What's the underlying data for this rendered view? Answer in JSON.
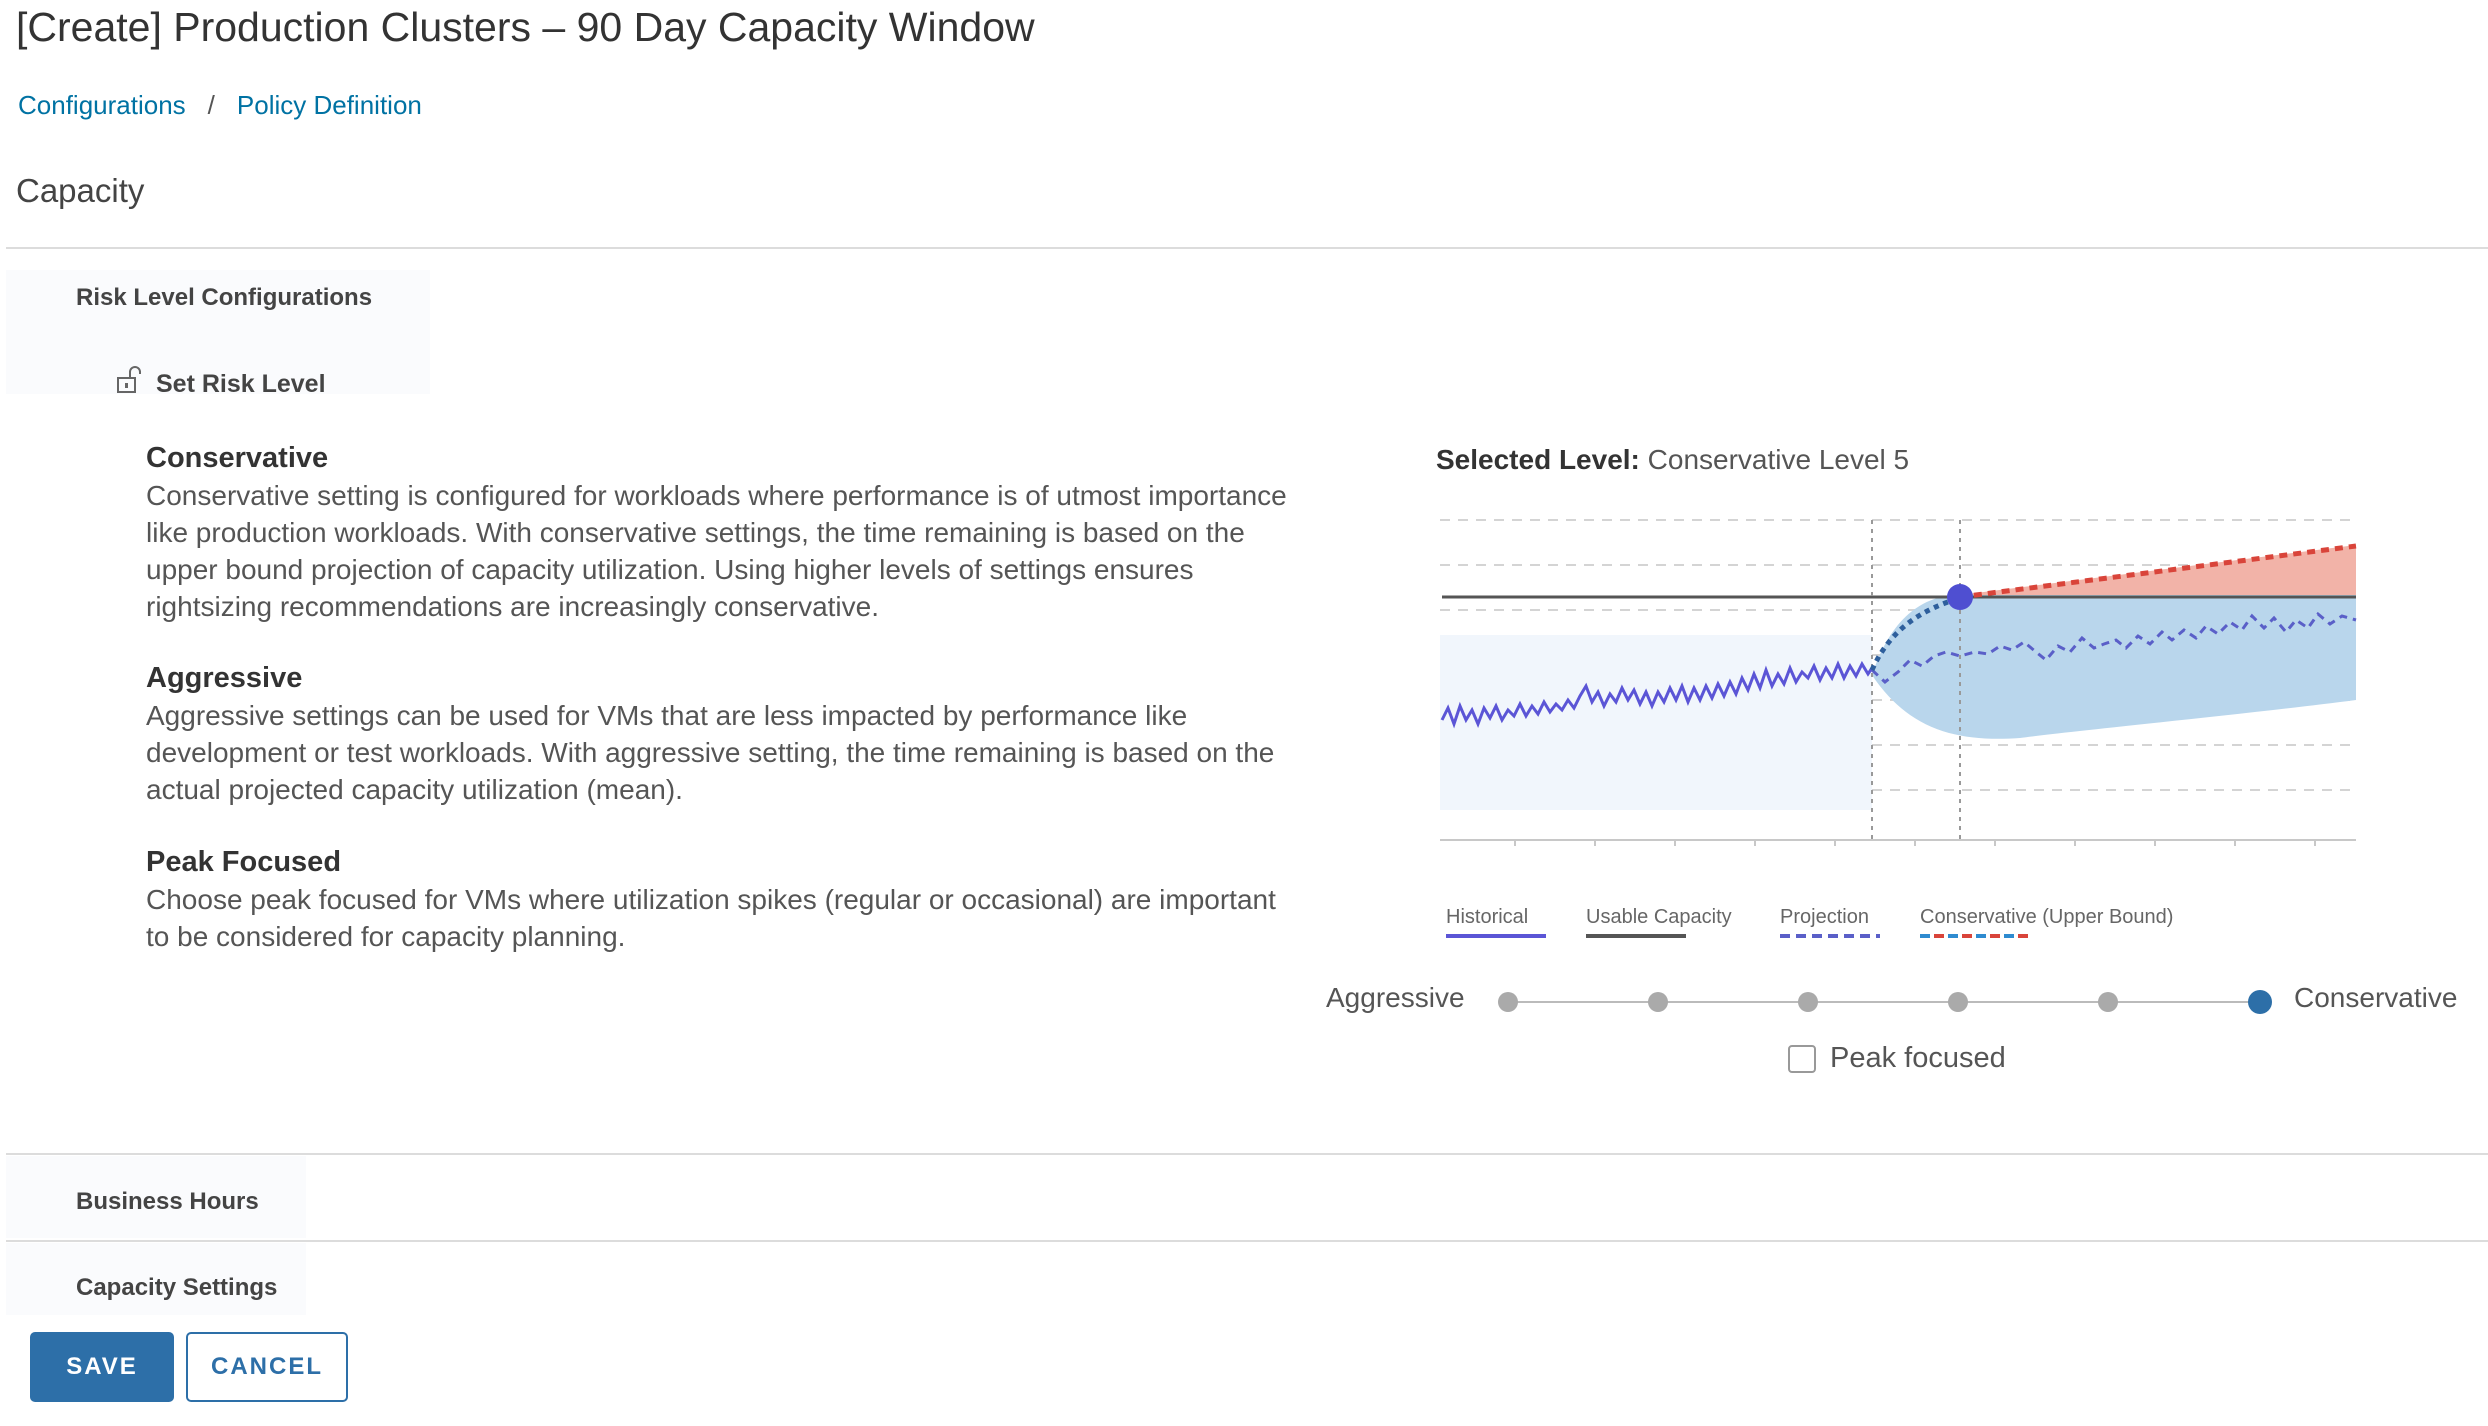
{
  "page": {
    "title": "[Create] Production Clusters – 90 Day Capacity Window",
    "breadcrumb": [
      "Configurations",
      "Policy Definition"
    ],
    "section": "Capacity"
  },
  "risk": {
    "accordion_title": "Risk Level Configurations",
    "set_label": "Set Risk Level",
    "icon": "unlock-icon",
    "descriptions": [
      {
        "title": "Conservative",
        "text": "Conservative setting is configured for workloads where performance is of utmost importance like production workloads. With conservative settings, the time remaining is based on the upper bound projection of capacity utilization. Using higher levels of settings ensures rightsizing recommendations are increasingly conservative."
      },
      {
        "title": "Aggressive",
        "text": "Aggressive settings can be used for VMs that are less impacted by performance like development or test workloads. With aggressive setting, the time remaining is based on the actual projected capacity utilization (mean)."
      },
      {
        "title": "Peak Focused",
        "text": "Choose peak focused for VMs where utilization spikes (regular or occasional) are important to be considered for capacity planning."
      }
    ],
    "selected_prefix": "Selected Level:",
    "selected_value": "Conservative Level 5",
    "legend": [
      "Historical",
      "Usable Capacity",
      "Projection",
      "Conservative (Upper Bound)"
    ],
    "slider": {
      "left_label": "Aggressive",
      "right_label": "Conservative",
      "steps": 6,
      "selected_index": 5
    },
    "peak_focused_label": "Peak focused",
    "peak_focused_checked": false
  },
  "sections": [
    "Business Hours",
    "Capacity Settings"
  ],
  "buttons": {
    "save": "SAVE",
    "cancel": "CANCEL"
  },
  "colors": {
    "link": "#0072a3",
    "primary": "#2d6fa8",
    "historical": "#5b55d6",
    "projection_band": "#b9d6ec",
    "conservative_band": "#f2b3a8",
    "conservative_line": "#d9443a",
    "projection_line": "#2e5f9c"
  }
}
